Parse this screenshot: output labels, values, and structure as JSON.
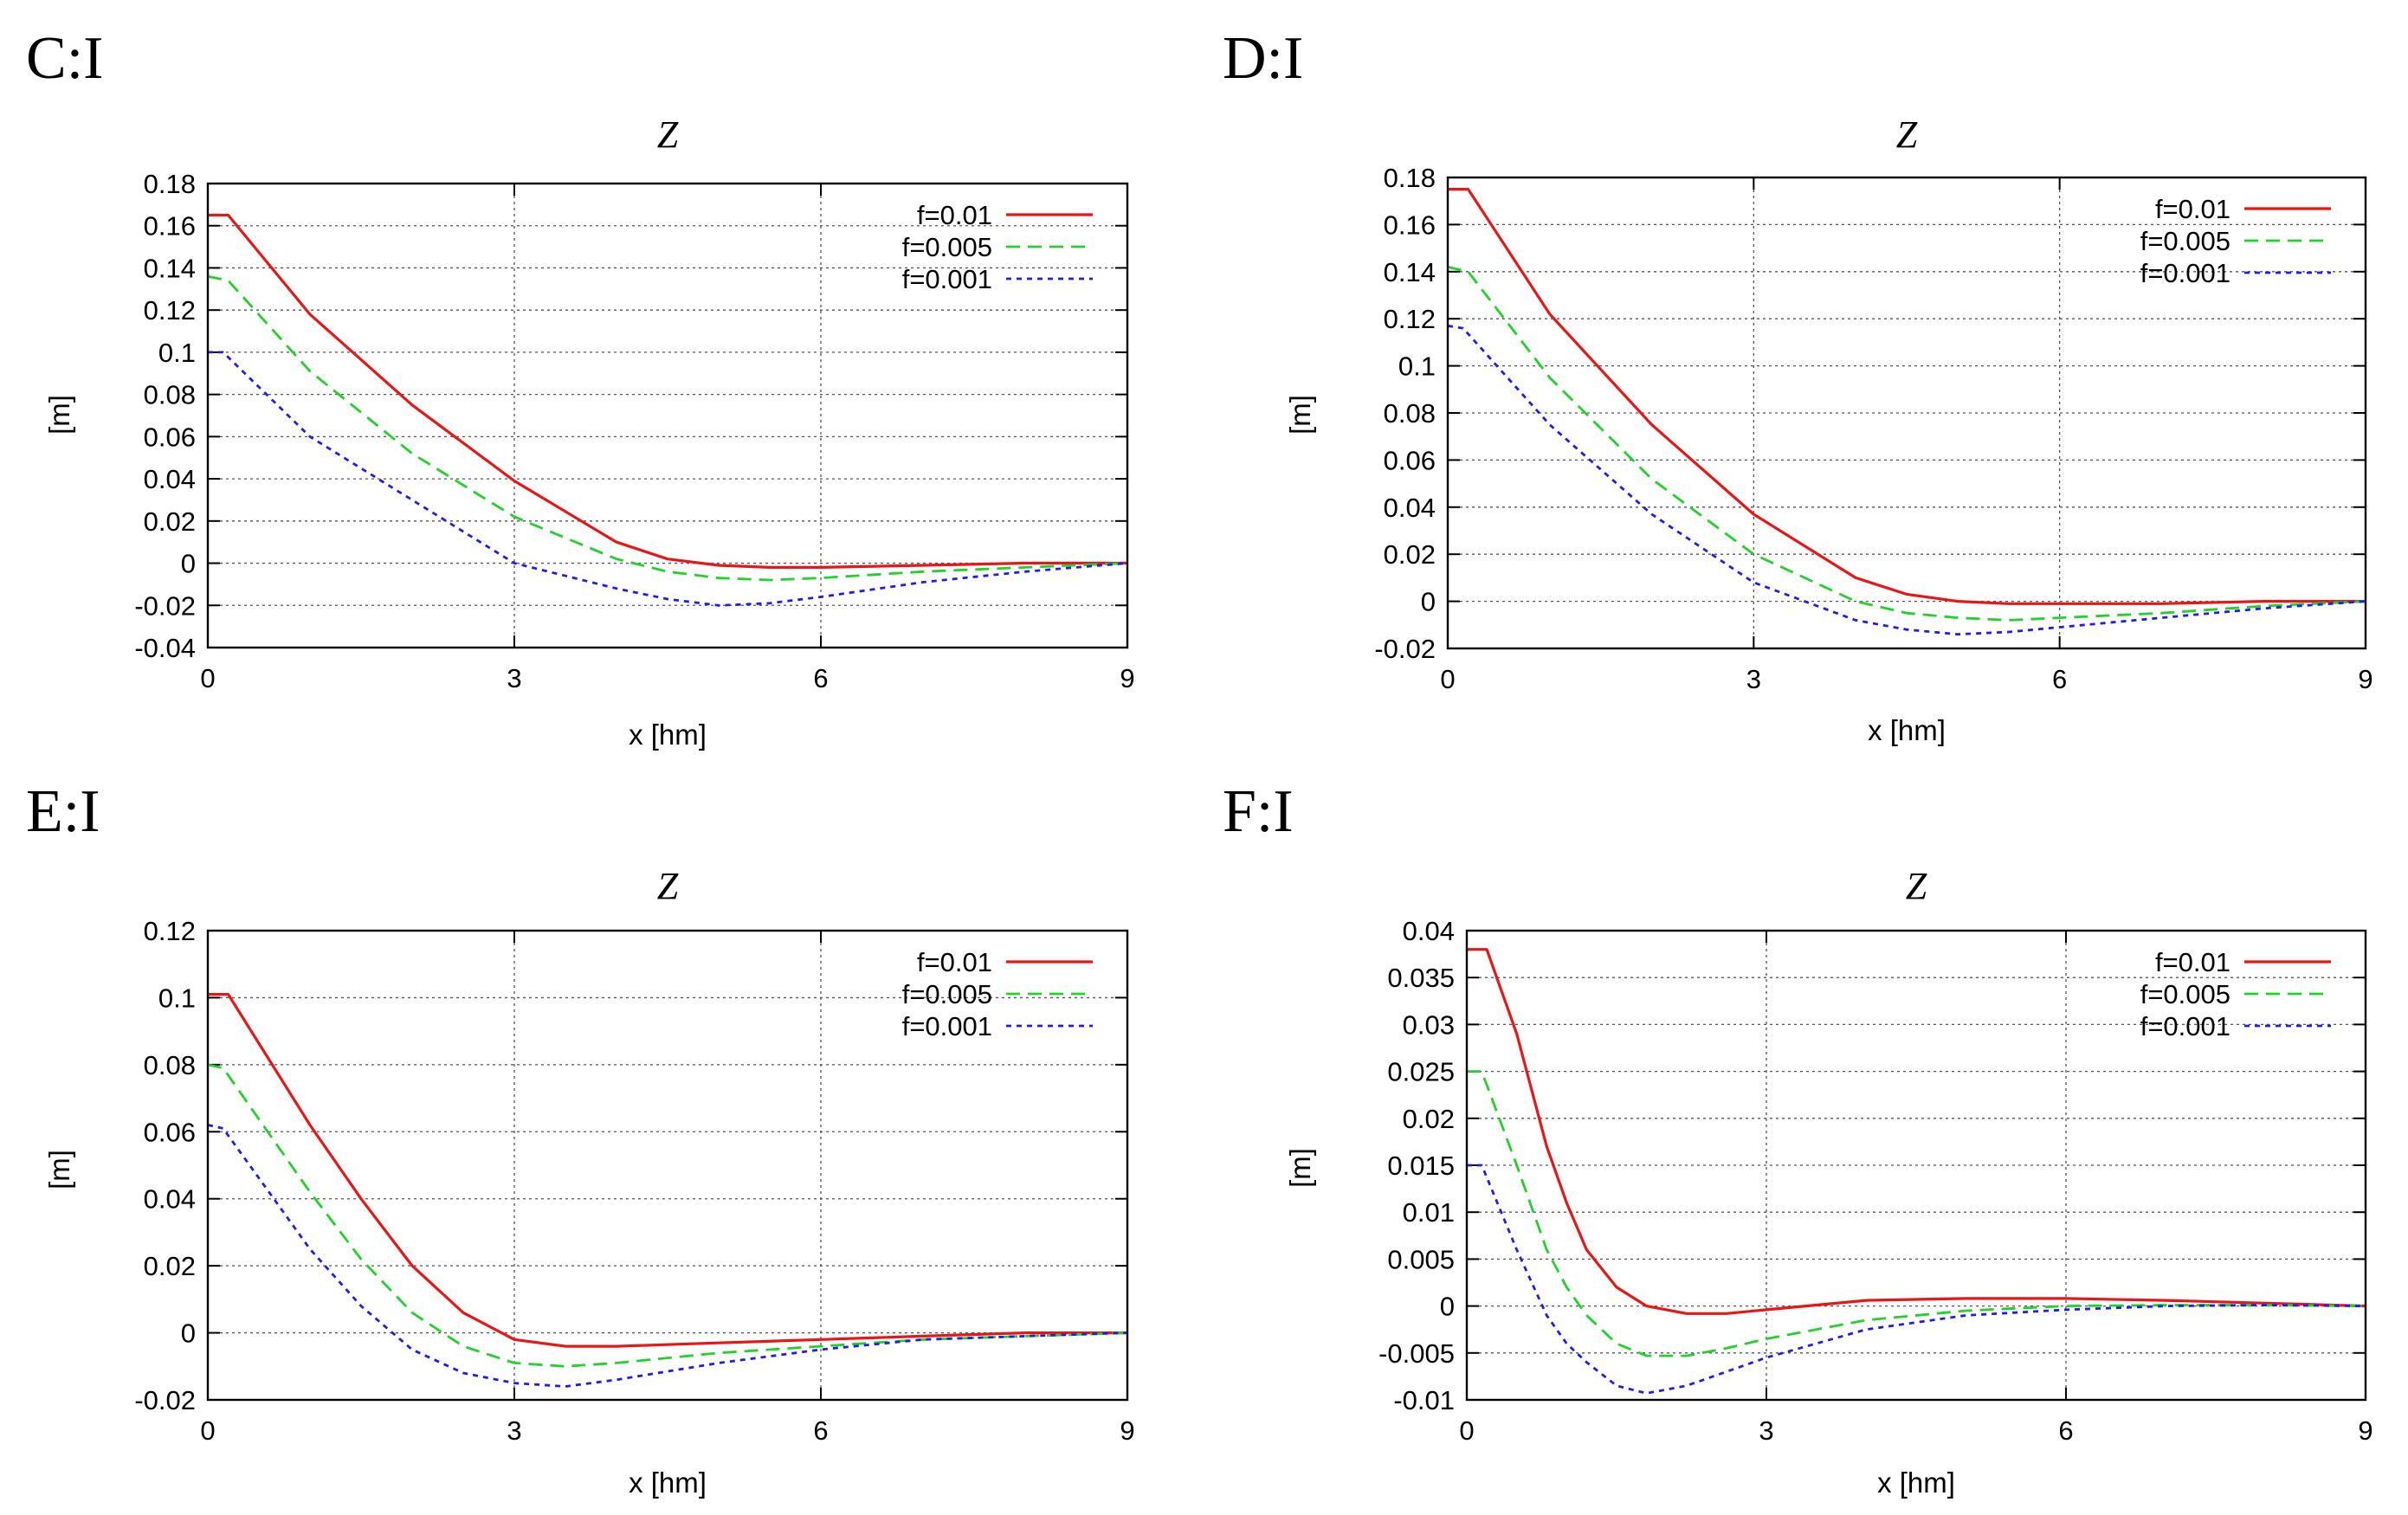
{
  "figure": {
    "panels": [
      "C:I",
      "D:I",
      "E:I",
      "F:I"
    ]
  },
  "colors": {
    "f001": "#e81616",
    "f0005": "#22d22a",
    "f0001": "#1e1ee6",
    "grid": "#555555"
  },
  "chart_data": [
    {
      "panel_label": "C:I",
      "type": "line",
      "title": "Z",
      "xlabel": "x [hm]",
      "ylabel": "[m]",
      "xlim": [
        0,
        9
      ],
      "ylim": [
        -0.04,
        0.18
      ],
      "xticks": [
        0,
        3,
        6,
        9
      ],
      "xtick_labels": [
        "0",
        "3",
        "6",
        "9"
      ],
      "yticks": [
        -0.04,
        -0.02,
        0,
        0.02,
        0.04,
        0.06,
        0.08,
        0.1,
        0.12,
        0.14,
        0.16,
        0.18
      ],
      "ytick_labels": [
        "-0.04",
        "-0.02",
        "0",
        "0.02",
        "0.04",
        "0.06",
        "0.08",
        "0.1",
        "0.12",
        "0.14",
        "0.16",
        "0.18"
      ],
      "grid": true,
      "legend_position": "top-right",
      "series": [
        {
          "name": "f=0.01",
          "style": "solid",
          "color": "#e81616",
          "x": [
            0,
            0.2,
            1,
            2,
            3,
            4,
            4.5,
            5,
            5.5,
            6,
            7,
            8,
            9
          ],
          "y": [
            0.165,
            0.165,
            0.118,
            0.075,
            0.039,
            0.01,
            0.002,
            -0.001,
            -0.002,
            -0.002,
            -0.001,
            0,
            0
          ]
        },
        {
          "name": "f=0.005",
          "style": "dashed",
          "color": "#22d22a",
          "x": [
            0,
            0.2,
            1,
            2,
            3,
            4,
            4.5,
            5,
            5.5,
            6,
            7,
            8,
            9
          ],
          "y": [
            0.136,
            0.134,
            0.091,
            0.052,
            0.022,
            0.002,
            -0.004,
            -0.007,
            -0.008,
            -0.007,
            -0.004,
            -0.002,
            0
          ]
        },
        {
          "name": "f=0.001",
          "style": "dotted",
          "color": "#1e1ee6",
          "x": [
            0,
            0.15,
            1,
            2,
            3,
            4,
            4.5,
            5,
            5.5,
            6,
            7,
            8,
            9
          ],
          "y": [
            0.1,
            0.1,
            0.06,
            0.03,
            0.0,
            -0.012,
            -0.017,
            -0.02,
            -0.019,
            -0.016,
            -0.009,
            -0.004,
            0
          ]
        }
      ]
    },
    {
      "panel_label": "D:I",
      "type": "line",
      "title": "Z",
      "xlabel": "x [hm]",
      "ylabel": "[m]",
      "xlim": [
        0,
        9
      ],
      "ylim": [
        -0.02,
        0.18
      ],
      "xticks": [
        0,
        3,
        6,
        9
      ],
      "xtick_labels": [
        "0",
        "3",
        "6",
        "9"
      ],
      "yticks": [
        -0.02,
        0,
        0.02,
        0.04,
        0.06,
        0.08,
        0.1,
        0.12,
        0.14,
        0.16,
        0.18
      ],
      "ytick_labels": [
        "-0.02",
        "0",
        "0.02",
        "0.04",
        "0.06",
        "0.08",
        "0.1",
        "0.12",
        "0.14",
        "0.16",
        "0.18"
      ],
      "grid": true,
      "legend_position": "top-right",
      "series": [
        {
          "name": "f=0.01",
          "style": "solid",
          "color": "#e81616",
          "x": [
            0,
            0.2,
            1,
            2,
            3,
            4,
            4.5,
            5,
            5.5,
            6,
            7,
            8,
            9
          ],
          "y": [
            0.175,
            0.175,
            0.122,
            0.075,
            0.037,
            0.01,
            0.003,
            0.0,
            -0.001,
            -0.001,
            -0.001,
            0,
            0
          ]
        },
        {
          "name": "f=0.005",
          "style": "dashed",
          "color": "#22d22a",
          "x": [
            0,
            0.2,
            1,
            2,
            3,
            4,
            4.5,
            5,
            5.5,
            6,
            7,
            8,
            9
          ],
          "y": [
            0.142,
            0.14,
            0.095,
            0.052,
            0.02,
            0.0,
            -0.005,
            -0.007,
            -0.008,
            -0.007,
            -0.005,
            -0.002,
            0
          ]
        },
        {
          "name": "f=0.001",
          "style": "dotted",
          "color": "#1e1ee6",
          "x": [
            0,
            0.15,
            1,
            2,
            3,
            4,
            4.5,
            5,
            5.5,
            6,
            7,
            8,
            9
          ],
          "y": [
            0.117,
            0.116,
            0.075,
            0.037,
            0.008,
            -0.008,
            -0.012,
            -0.014,
            -0.013,
            -0.011,
            -0.007,
            -0.003,
            0
          ]
        }
      ]
    },
    {
      "panel_label": "E:I",
      "type": "line",
      "title": "Z",
      "xlabel": "x [hm]",
      "ylabel": "[m]",
      "xlim": [
        0,
        9
      ],
      "ylim": [
        -0.02,
        0.12
      ],
      "xticks": [
        0,
        3,
        6,
        9
      ],
      "xtick_labels": [
        "0",
        "3",
        "6",
        "9"
      ],
      "yticks": [
        -0.02,
        0,
        0.02,
        0.04,
        0.06,
        0.08,
        0.1,
        0.12
      ],
      "ytick_labels": [
        "-0.02",
        "0",
        "0.02",
        "0.04",
        "0.06",
        "0.08",
        "0.1",
        "0.12"
      ],
      "grid": true,
      "legend_position": "top-right",
      "series": [
        {
          "name": "f=0.01",
          "style": "solid",
          "color": "#e81616",
          "x": [
            0,
            0.2,
            1,
            1.5,
            2,
            2.5,
            3,
            3.5,
            4,
            5,
            6,
            7,
            8,
            9
          ],
          "y": [
            0.101,
            0.101,
            0.062,
            0.04,
            0.02,
            0.006,
            -0.002,
            -0.004,
            -0.004,
            -0.003,
            -0.002,
            -0.001,
            0,
            0
          ]
        },
        {
          "name": "f=0.005",
          "style": "dashed",
          "color": "#22d22a",
          "x": [
            0,
            0.15,
            1,
            1.5,
            2,
            2.5,
            3,
            3.5,
            4,
            5,
            6,
            7,
            8,
            9
          ],
          "y": [
            0.08,
            0.079,
            0.042,
            0.022,
            0.006,
            -0.004,
            -0.009,
            -0.01,
            -0.009,
            -0.006,
            -0.004,
            -0.002,
            -0.001,
            0
          ]
        },
        {
          "name": "f=0.001",
          "style": "dotted",
          "color": "#1e1ee6",
          "x": [
            0,
            0.15,
            1,
            1.5,
            2,
            2.5,
            3,
            3.5,
            4,
            5,
            6,
            7,
            8,
            9
          ],
          "y": [
            0.062,
            0.061,
            0.025,
            0.008,
            -0.005,
            -0.012,
            -0.015,
            -0.016,
            -0.014,
            -0.009,
            -0.005,
            -0.002,
            -0.001,
            0
          ]
        }
      ]
    },
    {
      "panel_label": "F:I",
      "type": "line",
      "title": "Z",
      "xlabel": "x [hm]",
      "ylabel": "[m]",
      "xlim": [
        0,
        9
      ],
      "ylim": [
        -0.01,
        0.04
      ],
      "xticks": [
        0,
        3,
        6,
        9
      ],
      "xtick_labels": [
        "0",
        "3",
        "6",
        "9"
      ],
      "yticks": [
        -0.01,
        -0.005,
        0,
        0.005,
        0.01,
        0.015,
        0.02,
        0.025,
        0.03,
        0.035,
        0.04
      ],
      "ytick_labels": [
        "-0.01",
        "-0.005",
        "0",
        "0.005",
        "0.01",
        "0.015",
        "0.02",
        "0.025",
        "0.03",
        "0.035",
        "0.04"
      ],
      "grid": true,
      "legend_position": "top-right",
      "series": [
        {
          "name": "f=0.01",
          "style": "solid",
          "color": "#e81616",
          "x": [
            0,
            0.2,
            0.5,
            0.8,
            1.0,
            1.2,
            1.5,
            1.8,
            2.2,
            2.6,
            3,
            4,
            5,
            6,
            7,
            8,
            9
          ],
          "y": [
            0.038,
            0.038,
            0.029,
            0.017,
            0.011,
            0.006,
            0.002,
            0.0,
            -0.0008,
            -0.0008,
            -0.0004,
            0.0006,
            0.0008,
            0.0008,
            0.0006,
            0.0003,
            0
          ]
        },
        {
          "name": "f=0.005",
          "style": "dashed",
          "color": "#22d22a",
          "x": [
            0,
            0.15,
            0.5,
            0.8,
            1.0,
            1.2,
            1.5,
            1.8,
            2.2,
            2.6,
            3,
            4,
            5,
            6,
            7,
            8,
            9
          ],
          "y": [
            0.025,
            0.025,
            0.015,
            0.006,
            0.002,
            -0.001,
            -0.004,
            -0.0053,
            -0.0053,
            -0.0045,
            -0.0035,
            -0.0015,
            -0.0005,
            0.0,
            0.0001,
            0.0001,
            0
          ]
        },
        {
          "name": "f=0.001",
          "style": "dotted",
          "color": "#1e1ee6",
          "x": [
            0,
            0.15,
            0.5,
            0.8,
            1.0,
            1.2,
            1.5,
            1.8,
            2.2,
            2.6,
            3,
            4,
            5,
            6,
            7,
            8,
            9
          ],
          "y": [
            0.015,
            0.015,
            0.006,
            -0.001,
            -0.004,
            -0.006,
            -0.0085,
            -0.0093,
            -0.0085,
            -0.007,
            -0.0055,
            -0.0025,
            -0.001,
            -0.0004,
            0.0,
            0.0001,
            0
          ]
        }
      ]
    }
  ]
}
